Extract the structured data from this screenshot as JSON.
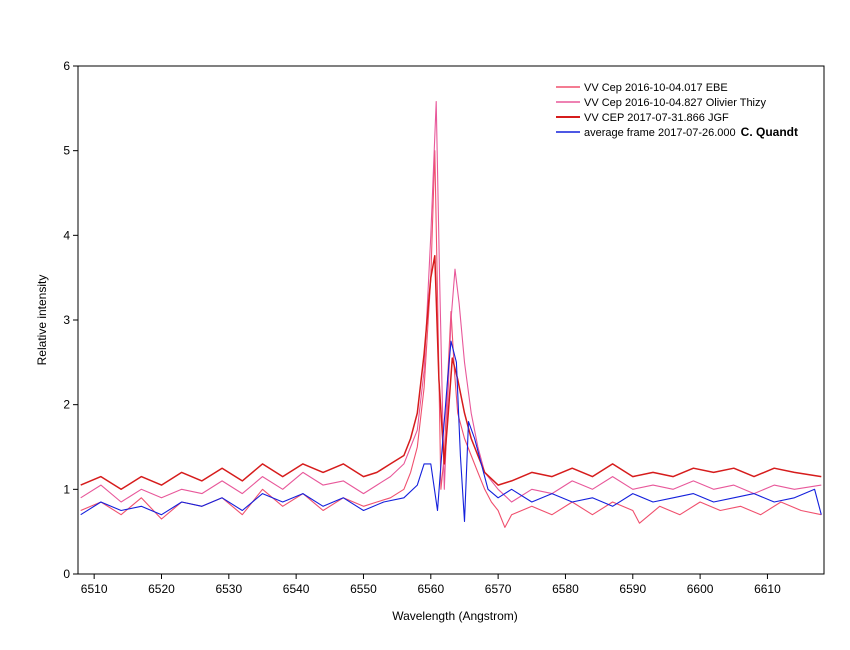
{
  "chart_data": {
    "type": "line",
    "title": "",
    "xlabel": "Wavelength (Angstrom)",
    "ylabel": "Relative intensity",
    "xlim": [
      6507.6,
      6618.4
    ],
    "ylim": [
      0,
      6
    ],
    "x_ticks": [
      6510,
      6520,
      6530,
      6540,
      6550,
      6560,
      6570,
      6580,
      6590,
      6600,
      6610
    ],
    "y_ticks": [
      0,
      1,
      2,
      3,
      4,
      5,
      6
    ],
    "grid": false,
    "legend_position": "top-right",
    "series": [
      {
        "name": "VV Cep  2016-10-04.017  EBE",
        "color": "#f0506e",
        "x": [
          6508,
          6511,
          6514,
          6517,
          6520,
          6523,
          6526,
          6529,
          6532,
          6535,
          6538,
          6541,
          6544,
          6547,
          6550,
          6552,
          6554,
          6556,
          6557,
          6558,
          6559,
          6560,
          6560.6,
          6561,
          6561.5,
          6562,
          6562.5,
          6563,
          6563.5,
          6564,
          6565,
          6566,
          6567,
          6568,
          6569,
          6570,
          6571,
          6572,
          6575,
          6578,
          6581,
          6584,
          6587,
          6590,
          6591,
          6594,
          6597,
          6600,
          6603,
          6606,
          6609,
          6612,
          6615,
          6618
        ],
        "y": [
          0.75,
          0.85,
          0.7,
          0.9,
          0.65,
          0.85,
          0.8,
          0.9,
          0.7,
          1.0,
          0.8,
          0.95,
          0.75,
          0.9,
          0.8,
          0.85,
          0.9,
          1.0,
          1.2,
          1.5,
          2.2,
          3.5,
          5.0,
          3.3,
          1.0,
          1.4,
          2.3,
          3.1,
          2.4,
          1.9,
          1.6,
          1.4,
          1.2,
          1.0,
          0.85,
          0.75,
          0.55,
          0.7,
          0.8,
          0.7,
          0.85,
          0.7,
          0.85,
          0.75,
          0.6,
          0.8,
          0.7,
          0.85,
          0.75,
          0.8,
          0.7,
          0.85,
          0.75,
          0.7
        ]
      },
      {
        "name": "VV Cep  2016-10-04.827  Olivier Thizy",
        "color": "#e8589a",
        "x": [
          6508,
          6511,
          6514,
          6517,
          6520,
          6523,
          6526,
          6529,
          6532,
          6535,
          6538,
          6541,
          6544,
          6547,
          6550,
          6552,
          6554,
          6556,
          6557,
          6558,
          6559,
          6560,
          6560.8,
          6561.3,
          6562,
          6562.5,
          6563,
          6563.6,
          6564.2,
          6565,
          6566,
          6567,
          6568,
          6570,
          6572,
          6575,
          6578,
          6581,
          6584,
          6587,
          6590,
          6593,
          6596,
          6599,
          6602,
          6605,
          6608,
          6611,
          6614,
          6618
        ],
        "y": [
          0.9,
          1.05,
          0.85,
          1.0,
          0.9,
          1.0,
          0.95,
          1.1,
          0.95,
          1.15,
          1.0,
          1.2,
          1.05,
          1.1,
          0.95,
          1.05,
          1.15,
          1.3,
          1.5,
          1.7,
          2.4,
          4.0,
          5.58,
          3.5,
          1.0,
          2.0,
          3.0,
          3.6,
          3.2,
          2.5,
          1.9,
          1.5,
          1.2,
          1.0,
          0.85,
          1.0,
          0.95,
          1.1,
          1.0,
          1.15,
          1.0,
          1.05,
          1.0,
          1.1,
          1.0,
          1.05,
          0.95,
          1.05,
          1.0,
          1.05
        ]
      },
      {
        "name": "VV CEP  2017-07-31.866  JGF",
        "color": "#d61c1c",
        "x": [
          6508,
          6511,
          6514,
          6517,
          6520,
          6523,
          6526,
          6529,
          6532,
          6535,
          6538,
          6541,
          6544,
          6547,
          6550,
          6552,
          6554,
          6556,
          6557,
          6558,
          6559,
          6560,
          6560.6,
          6561.2,
          6562,
          6562.6,
          6563.2,
          6564,
          6565,
          6566,
          6567,
          6568,
          6570,
          6572,
          6575,
          6578,
          6581,
          6584,
          6587,
          6590,
          6593,
          6596,
          6599,
          6602,
          6605,
          6608,
          6611,
          6614,
          6618
        ],
        "y": [
          1.05,
          1.15,
          1.0,
          1.15,
          1.05,
          1.2,
          1.1,
          1.25,
          1.1,
          1.3,
          1.15,
          1.3,
          1.2,
          1.3,
          1.15,
          1.2,
          1.3,
          1.4,
          1.6,
          1.9,
          2.6,
          3.5,
          3.76,
          2.3,
          1.3,
          1.9,
          2.55,
          2.3,
          1.9,
          1.6,
          1.4,
          1.2,
          1.05,
          1.1,
          1.2,
          1.15,
          1.25,
          1.15,
          1.3,
          1.15,
          1.2,
          1.15,
          1.25,
          1.2,
          1.25,
          1.15,
          1.25,
          1.2,
          1.15
        ]
      },
      {
        "name": "average frame  2017-07-26.000",
        "name_suffix": "C. Quandt",
        "color": "#1420dc",
        "x": [
          6508,
          6511,
          6514,
          6517,
          6520,
          6523,
          6526,
          6529,
          6532,
          6535,
          6538,
          6541,
          6544,
          6547,
          6550,
          6553,
          6556,
          6558,
          6559,
          6560,
          6561,
          6561.8,
          6562.5,
          6563,
          6563.8,
          6564.4,
          6565,
          6565.6,
          6566.5,
          6567.5,
          6568.5,
          6570,
          6572,
          6575,
          6578,
          6581,
          6584,
          6587,
          6590,
          6593,
          6596,
          6599,
          6602,
          6605,
          6608,
          6611,
          6614,
          6617,
          6618
        ],
        "y": [
          0.7,
          0.85,
          0.75,
          0.8,
          0.7,
          0.85,
          0.8,
          0.9,
          0.75,
          0.95,
          0.85,
          0.95,
          0.8,
          0.9,
          0.75,
          0.85,
          0.9,
          1.05,
          1.3,
          1.3,
          0.75,
          1.6,
          2.3,
          2.75,
          2.5,
          1.4,
          0.62,
          1.8,
          1.6,
          1.3,
          1.0,
          0.9,
          1.0,
          0.85,
          0.95,
          0.85,
          0.9,
          0.8,
          0.95,
          0.85,
          0.9,
          0.95,
          0.85,
          0.9,
          0.95,
          0.85,
          0.9,
          1.0,
          0.7
        ]
      }
    ]
  }
}
